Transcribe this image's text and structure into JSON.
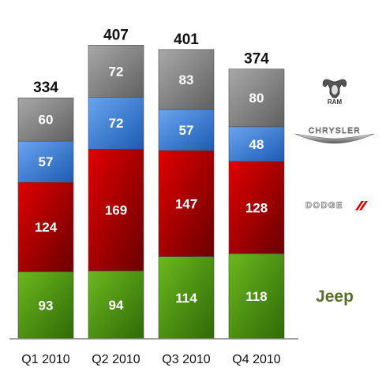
{
  "chart_data": {
    "type": "bar",
    "stacked": true,
    "categories": [
      "Q1 2010",
      "Q2 2010",
      "Q3 2010",
      "Q4 2010"
    ],
    "series": [
      {
        "name": "Jeep",
        "color": "#5a9a16",
        "values": [
          93,
          94,
          114,
          118
        ]
      },
      {
        "name": "Dodge",
        "color": "#c00000",
        "values": [
          124,
          169,
          147,
          128
        ]
      },
      {
        "name": "Chrysler",
        "color": "#3d7fd8",
        "values": [
          57,
          72,
          57,
          48
        ]
      },
      {
        "name": "Ram",
        "color": "#8a8a8a",
        "values": [
          60,
          72,
          83,
          80
        ]
      }
    ],
    "totals": [
      334,
      407,
      401,
      374
    ],
    "ylim": [
      0,
      450
    ],
    "legend": "right",
    "grid": false
  },
  "legend_logos": [
    {
      "brand": "Ram",
      "text": "RAM",
      "icon": "ram-head-icon"
    },
    {
      "brand": "Chrysler",
      "text": "CHRYSLER",
      "icon": "chrysler-wings-icon"
    },
    {
      "brand": "Dodge",
      "text": "DODGE",
      "icon": "dodge-stripes-icon"
    },
    {
      "brand": "Jeep",
      "text": "Jeep",
      "icon": "jeep-wordmark-icon"
    }
  ]
}
